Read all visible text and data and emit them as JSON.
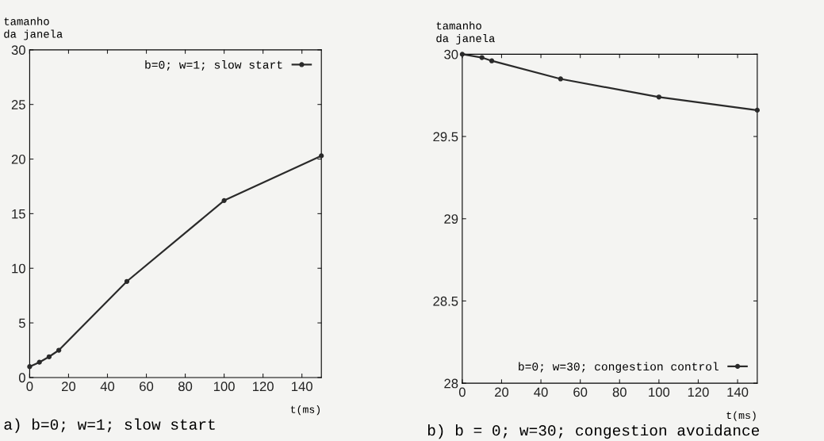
{
  "chart_data": [
    {
      "type": "line",
      "ylabel": "tamanho\nda janela",
      "xlabel": "t(ms)",
      "x": [
        0,
        5,
        10,
        15,
        50,
        100,
        150
      ],
      "series": [
        {
          "name": "b=0; w=1; slow start",
          "color": "#2a2a2a",
          "values": [
            1.0,
            1.4,
            1.9,
            2.5,
            8.8,
            16.2,
            20.3
          ]
        }
      ],
      "xlim": [
        0,
        150
      ],
      "xticks": [
        0,
        20,
        40,
        60,
        80,
        100,
        120,
        140
      ],
      "ylim": [
        0,
        30
      ],
      "yticks": [
        0,
        5,
        10,
        15,
        20,
        25,
        30
      ],
      "marker": "circle",
      "line_style": "solid",
      "legend": "top right",
      "grid": false,
      "annotations": [
        "a) b=0; w=1; slow start"
      ]
    },
    {
      "type": "line",
      "ylabel": "tamanho\nda janela",
      "xlabel": "t(ms)",
      "x": [
        0,
        10,
        15,
        50,
        100,
        150
      ],
      "series": [
        {
          "name": "b=0; w=30; congestion control",
          "color": "#2a2a2a",
          "values": [
            30.0,
            29.98,
            29.96,
            29.85,
            29.74,
            29.66
          ]
        }
      ],
      "xlim": [
        0,
        150
      ],
      "xticks": [
        0,
        20,
        40,
        60,
        80,
        100,
        120,
        140
      ],
      "ylim": [
        28,
        30
      ],
      "yticks": [
        28,
        28.5,
        29,
        29.5,
        30
      ],
      "marker": "circle",
      "line_style": "solid",
      "legend": "bottom right",
      "grid": false,
      "annotations": [
        "b) b = 0; w=30; congestion avoidance"
      ]
    }
  ]
}
